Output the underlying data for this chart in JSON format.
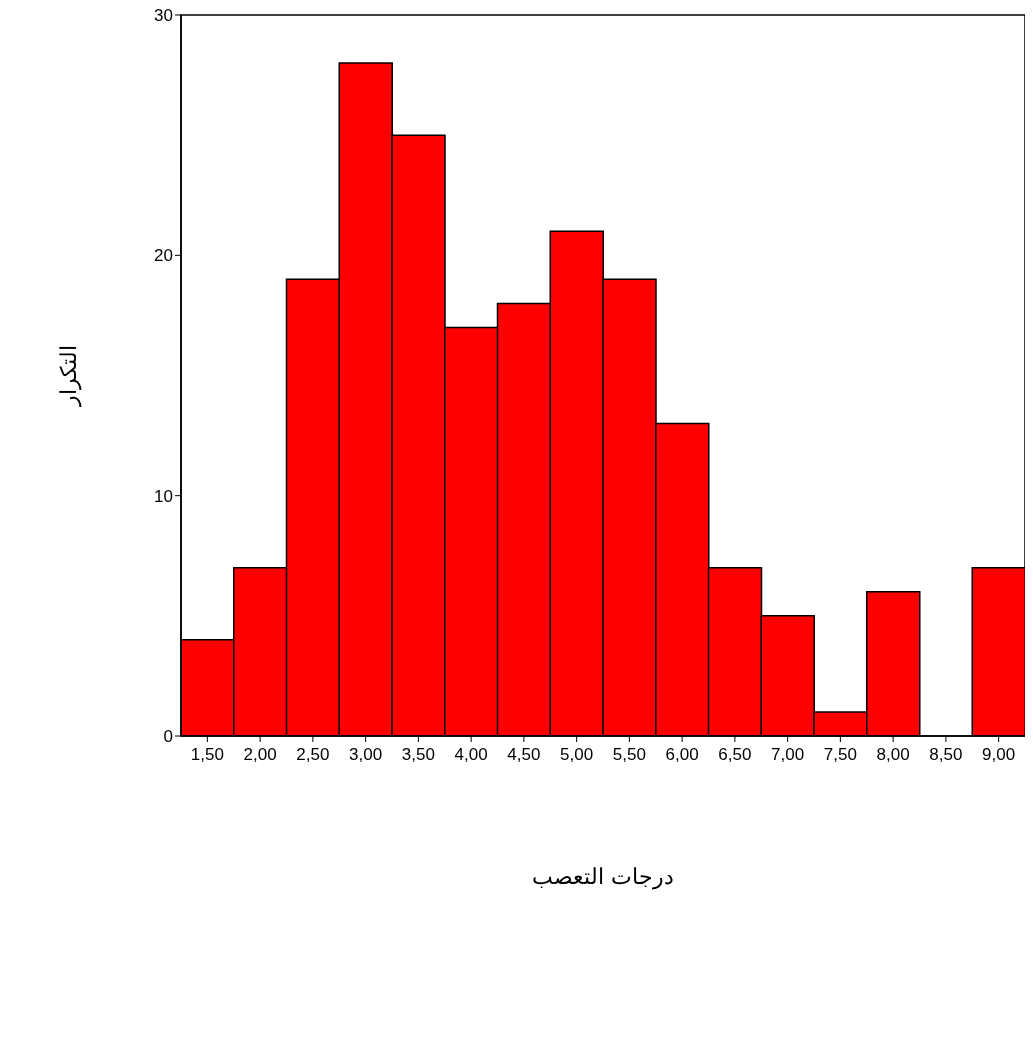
{
  "chart_data": {
    "type": "histogram",
    "xlabel": "درجات التعصب",
    "ylabel": "التكرار",
    "bins": [
      1.25,
      1.75,
      2.25,
      2.75,
      3.25,
      3.75,
      4.25,
      4.75,
      5.25,
      5.75,
      6.25,
      6.75,
      7.25,
      7.75,
      8.25,
      8.75,
      9.25
    ],
    "values": [
      4,
      7,
      19,
      28,
      25,
      17,
      18,
      21,
      19,
      13,
      7,
      5,
      1,
      6,
      0,
      7
    ],
    "color": "#ff0000",
    "xlim": [
      1.25,
      9.25
    ],
    "ylim": [
      0,
      30
    ],
    "yticks": [
      0,
      10,
      20,
      30
    ],
    "xticks": [
      {
        "value": 1.5,
        "label": "1,50"
      },
      {
        "value": 2,
        "label": "2,00"
      },
      {
        "value": 2.5,
        "label": "2,50"
      },
      {
        "value": 3,
        "label": "3,00"
      },
      {
        "value": 3.5,
        "label": "3,50"
      },
      {
        "value": 4,
        "label": "4,00"
      },
      {
        "value": 4.5,
        "label": "4,50"
      },
      {
        "value": 5,
        "label": "5,00"
      },
      {
        "value": 5.5,
        "label": "5,50"
      },
      {
        "value": 6,
        "label": "6,00"
      },
      {
        "value": 6.5,
        "label": "6,50"
      },
      {
        "value": 7,
        "label": "7,00"
      },
      {
        "value": 7.5,
        "label": "7,50"
      },
      {
        "value": 8,
        "label": "8,00"
      },
      {
        "value": 8.5,
        "label": "8,50"
      },
      {
        "value": 9,
        "label": "9,00"
      }
    ],
    "grid": false,
    "legend": false
  }
}
